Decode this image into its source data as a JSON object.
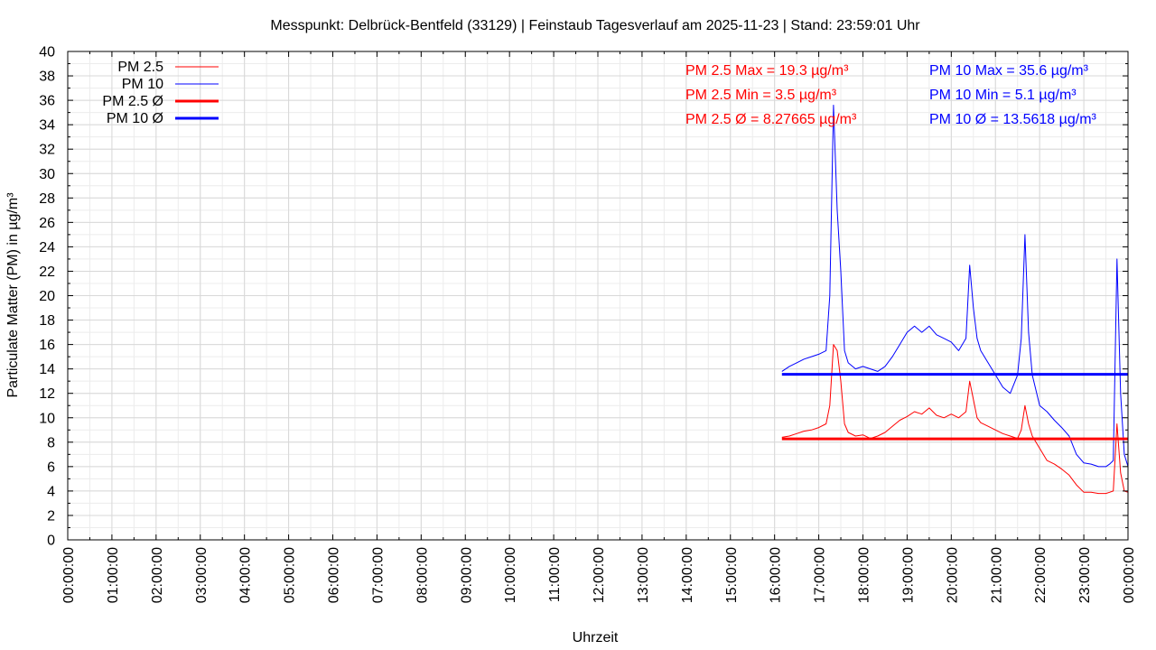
{
  "chart_data": {
    "type": "line",
    "title": "Messpunkt: Delbrück-Bentfeld (33129) | Feinstaub Tagesverlauf am 2025-11-23 | Stand: 23:59:01 Uhr",
    "xlabel": "Uhrzeit",
    "ylabel": "Particulate Matter (PM) in µg/m³",
    "xlim": [
      "00:00:00",
      "24:00:00"
    ],
    "ylim": [
      0,
      40
    ],
    "x_ticks": [
      "00:00:00",
      "01:00:00",
      "02:00:00",
      "03:00:00",
      "04:00:00",
      "05:00:00",
      "06:00:00",
      "07:00:00",
      "08:00:00",
      "09:00:00",
      "10:00:00",
      "11:00:00",
      "12:00:00",
      "13:00:00",
      "14:00:00",
      "15:00:00",
      "16:00:00",
      "17:00:00",
      "18:00:00",
      "19:00:00",
      "20:00:00",
      "21:00:00",
      "22:00:00",
      "23:00:00",
      "00:00:00"
    ],
    "y_ticks": [
      0,
      2,
      4,
      6,
      8,
      10,
      12,
      14,
      16,
      18,
      20,
      22,
      24,
      26,
      28,
      30,
      32,
      34,
      36,
      38,
      40
    ],
    "grid": true,
    "legend_position": "top-left",
    "legend": [
      {
        "label": "PM 2.5",
        "color": "#ff0000",
        "style": "thin"
      },
      {
        "label": "PM 10",
        "color": "#0000ff",
        "style": "thin"
      },
      {
        "label": "PM 2.5 Ø",
        "color": "#ff0000",
        "style": "thick"
      },
      {
        "label": "PM 10 Ø",
        "color": "#0000ff",
        "style": "thick"
      }
    ],
    "annotations": {
      "pm25": [
        "PM 2.5 Max = 19.3 µg/m³",
        "PM 2.5 Min = 3.5 µg/m³",
        "PM 2.5 Ø = 8.27665 µg/m³"
      ],
      "pm10": [
        "PM 10 Max = 35.6 µg/m³",
        "PM 10 Min = 5.1 µg/m³",
        "PM 10 Ø = 13.5618 µg/m³"
      ]
    },
    "series": [
      {
        "name": "PM 2.5",
        "color": "#ff0000",
        "x": [
          "16:10",
          "16:20",
          "16:30",
          "16:40",
          "16:50",
          "17:00",
          "17:10",
          "17:15",
          "17:20",
          "17:25",
          "17:30",
          "17:35",
          "17:40",
          "17:50",
          "18:00",
          "18:10",
          "18:20",
          "18:30",
          "18:40",
          "18:50",
          "19:00",
          "19:10",
          "19:20",
          "19:30",
          "19:40",
          "19:50",
          "20:00",
          "20:10",
          "20:20",
          "20:25",
          "20:30",
          "20:35",
          "20:40",
          "20:50",
          "21:00",
          "21:10",
          "21:20",
          "21:30",
          "21:35",
          "21:40",
          "21:45",
          "21:50",
          "22:00",
          "22:10",
          "22:20",
          "22:30",
          "22:40",
          "22:50",
          "23:00",
          "23:10",
          "23:20",
          "23:30",
          "23:35",
          "23:40",
          "23:45",
          "23:50",
          "23:55",
          "24:00"
        ],
        "y": [
          8.4,
          8.5,
          8.7,
          8.9,
          9.0,
          9.2,
          9.5,
          11.0,
          16.0,
          15.5,
          13.0,
          9.5,
          8.8,
          8.5,
          8.6,
          8.3,
          8.5,
          8.8,
          9.3,
          9.8,
          10.1,
          10.5,
          10.3,
          10.8,
          10.2,
          10.0,
          10.3,
          10.0,
          10.5,
          13.0,
          11.5,
          10.0,
          9.6,
          9.3,
          9.0,
          8.7,
          8.5,
          8.3,
          9.0,
          11.0,
          9.5,
          8.5,
          7.5,
          6.5,
          6.2,
          5.8,
          5.3,
          4.5,
          3.9,
          3.9,
          3.8,
          3.8,
          3.9,
          4.0,
          9.5,
          5.5,
          4.0,
          3.9
        ]
      },
      {
        "name": "PM 10",
        "color": "#0000ff",
        "x": [
          "16:10",
          "16:20",
          "16:30",
          "16:40",
          "16:50",
          "17:00",
          "17:10",
          "17:15",
          "17:20",
          "17:25",
          "17:30",
          "17:35",
          "17:40",
          "17:50",
          "18:00",
          "18:10",
          "18:20",
          "18:30",
          "18:40",
          "18:50",
          "19:00",
          "19:10",
          "19:20",
          "19:30",
          "19:40",
          "19:50",
          "20:00",
          "20:10",
          "20:20",
          "20:25",
          "20:30",
          "20:35",
          "20:40",
          "20:50",
          "21:00",
          "21:10",
          "21:20",
          "21:30",
          "21:35",
          "21:40",
          "21:45",
          "21:50",
          "22:00",
          "22:10",
          "22:20",
          "22:30",
          "22:40",
          "22:50",
          "23:00",
          "23:10",
          "23:20",
          "23:30",
          "23:35",
          "23:40",
          "23:45",
          "23:50",
          "23:55",
          "24:00"
        ],
        "y": [
          13.8,
          14.2,
          14.5,
          14.8,
          15.0,
          15.2,
          15.5,
          20.0,
          35.6,
          27.0,
          22.0,
          15.5,
          14.5,
          14.0,
          14.2,
          14.0,
          13.8,
          14.2,
          15.0,
          16.0,
          17.0,
          17.5,
          17.0,
          17.5,
          16.8,
          16.5,
          16.2,
          15.5,
          16.5,
          22.5,
          19.0,
          16.5,
          15.5,
          14.5,
          13.5,
          12.5,
          12.0,
          13.5,
          16.5,
          25.0,
          17.0,
          13.5,
          11.0,
          10.5,
          9.8,
          9.2,
          8.5,
          7.0,
          6.3,
          6.2,
          6.0,
          6.0,
          6.2,
          6.5,
          23.0,
          12.0,
          7.0,
          6.0
        ]
      },
      {
        "name": "PM 2.5 Ø",
        "color": "#ff0000",
        "x": [
          "16:10",
          "24:00"
        ],
        "y": [
          8.27665,
          8.27665
        ]
      },
      {
        "name": "PM 10 Ø",
        "color": "#0000ff",
        "x": [
          "16:10",
          "24:00"
        ],
        "y": [
          13.5618,
          13.5618
        ]
      }
    ]
  }
}
